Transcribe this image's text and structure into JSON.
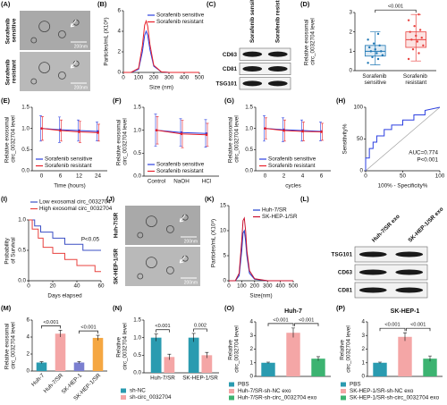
{
  "chart_data": [
    {
      "label": "(A)",
      "type": "image",
      "rows": [
        "Sorafenib sensitive",
        "Sorafenib resistant"
      ],
      "scale_bar": "200nm"
    },
    {
      "label": "(B)",
      "type": "line",
      "xlabel": "Size (nm)",
      "ylabel": "Particles/mL (X10⁸)",
      "xlim": [
        0,
        500
      ],
      "xticks": [
        0,
        100,
        200,
        300,
        400,
        500
      ],
      "ylim": [
        0,
        6
      ],
      "yticks": [
        0,
        2,
        4,
        6
      ],
      "x": [
        0,
        50,
        100,
        125,
        140,
        150,
        160,
        175,
        200,
        250,
        300,
        400,
        500
      ],
      "series": [
        {
          "name": "Sorafenib sensitive",
          "color": "#2b3fe0",
          "values": [
            0,
            0,
            0.3,
            2.0,
            3.6,
            4.0,
            3.6,
            2.2,
            0.6,
            0.05,
            0,
            0,
            0
          ]
        },
        {
          "name": "Sorafenib resistant",
          "color": "#e8202a",
          "values": [
            0,
            0,
            0.4,
            2.6,
            4.6,
            5.0,
            4.5,
            2.7,
            0.7,
            0.05,
            0,
            0,
            0
          ]
        }
      ]
    },
    {
      "label": "(C)",
      "type": "blot",
      "columns": [
        "Sorafenib sensitive",
        "Sorafenib resistant"
      ],
      "rows": [
        "CD63",
        "CD81",
        "TSG101"
      ]
    },
    {
      "label": "(D)",
      "type": "box",
      "ylabel": "Relative exosomal circ_0032704 level",
      "categories": [
        "Sorafenib sensitive",
        "Sorafenib resistant"
      ],
      "colors": [
        "#1f77b4",
        "#e8423f"
      ],
      "ylim": [
        0,
        3
      ],
      "yticks": [
        0,
        1,
        2,
        3
      ],
      "annotations": [
        "<0.001"
      ],
      "boxes": [
        {
          "min": 0.3,
          "q1": 0.75,
          "median": 1.0,
          "q3": 1.3,
          "max": 2.0,
          "points": [
            0.4,
            0.6,
            0.7,
            0.8,
            0.9,
            1.0,
            1.0,
            1.1,
            1.2,
            1.3,
            1.4,
            1.6,
            1.9
          ]
        },
        {
          "min": 0.5,
          "q1": 1.2,
          "median": 1.6,
          "q3": 2.0,
          "max": 2.9,
          "points": [
            0.6,
            0.9,
            1.1,
            1.3,
            1.5,
            1.6,
            1.7,
            1.8,
            2.0,
            2.1,
            2.3,
            2.6,
            2.9
          ]
        }
      ]
    },
    {
      "label": "(E)",
      "type": "line",
      "xlabel": "Time (hours)",
      "ylabel": "Relative exosomal circ_0032704 level",
      "categories": [
        "0",
        "6",
        "12",
        "24"
      ],
      "ylim": [
        0,
        1.5
      ],
      "yticks": [
        {
          "value": 0,
          "label": "0.0"
        },
        {
          "value": 0.5,
          "label": "0.5"
        },
        {
          "value": 1,
          "label": "1.0"
        },
        {
          "value": 1.5,
          "label": "1.5"
        }
      ],
      "series": [
        {
          "name": "Sorafenib sensitive",
          "color": "#2b3fe0",
          "values": [
            1.0,
            0.97,
            0.95,
            0.93
          ],
          "errors": [
            0.3,
            0.3,
            0.25,
            0.22
          ]
        },
        {
          "name": "Sorafenib resistant",
          "color": "#e8202a",
          "values": [
            1.0,
            0.95,
            0.92,
            0.9
          ],
          "errors": [
            0.28,
            0.25,
            0.25,
            0.2
          ]
        }
      ]
    },
    {
      "label": "(F)",
      "type": "line",
      "ylabel": "Relative exosomal circ_0032704 level",
      "categories": [
        "Control",
        "NaOH",
        "HCl"
      ],
      "ylim": [
        0,
        1.5
      ],
      "yticks": [
        {
          "value": 0,
          "label": "0.0"
        },
        {
          "value": 0.5,
          "label": "0.5"
        },
        {
          "value": 1,
          "label": "1.0"
        },
        {
          "value": 1.5,
          "label": "1.5"
        }
      ],
      "series": [
        {
          "name": "Sorafenib sensitive",
          "color": "#2b3fe0",
          "values": [
            1.0,
            0.95,
            0.93
          ],
          "errors": [
            0.35,
            0.3,
            0.3
          ]
        },
        {
          "name": "Sorafenib resistant",
          "color": "#e8202a",
          "values": [
            1.0,
            0.92,
            0.9
          ],
          "errors": [
            0.3,
            0.3,
            0.25
          ]
        }
      ]
    },
    {
      "label": "(G)",
      "type": "line",
      "xlabel": "cycles",
      "ylabel": "Relative exosomal circ_0032704 level",
      "categories": [
        "0",
        "2",
        "4",
        "6"
      ],
      "ylim": [
        0,
        1.5
      ],
      "yticks": [
        {
          "value": 0,
          "label": "0.0"
        },
        {
          "value": 0.5,
          "label": "0.5"
        },
        {
          "value": 1,
          "label": "1.0"
        },
        {
          "value": 1.5,
          "label": "1.5"
        }
      ],
      "series": [
        {
          "name": "Sorafenib sensitive",
          "color": "#2b3fe0",
          "values": [
            1.0,
            0.97,
            0.95,
            0.93
          ],
          "errors": [
            0.3,
            0.28,
            0.25,
            0.22
          ]
        },
        {
          "name": "Sorafenib resistant",
          "color": "#e8202a",
          "values": [
            1.0,
            0.95,
            0.93,
            0.92
          ],
          "errors": [
            0.25,
            0.25,
            0.22,
            0.2
          ]
        }
      ]
    },
    {
      "label": "(H)",
      "type": "line",
      "xlabel": "100% - Specificity%",
      "ylabel": "Sensitivity%",
      "xlim": [
        0,
        100
      ],
      "xticks": [
        0,
        50,
        100
      ],
      "ylim": [
        0,
        100
      ],
      "yticks": [
        0,
        50,
        100
      ],
      "diagonal": true,
      "annotations": [
        "AUC=0.774",
        "P<0.001"
      ],
      "series": [
        {
          "color": "#2b3fe0",
          "x": [
            0,
            0,
            5,
            5,
            10,
            10,
            15,
            15,
            25,
            25,
            35,
            35,
            50,
            50,
            65,
            65,
            80,
            80,
            100
          ],
          "values": [
            0,
            20,
            20,
            35,
            35,
            45,
            45,
            55,
            55,
            65,
            65,
            72,
            72,
            80,
            80,
            88,
            88,
            95,
            100
          ]
        }
      ]
    },
    {
      "label": "(I)",
      "type": "line",
      "xlabel": "Days elapsed",
      "ylabel": "Probability of Survival",
      "xlim": [
        0,
        60
      ],
      "xticks": [
        0,
        20,
        40,
        60
      ],
      "ylim": [
        0,
        1
      ],
      "yticks": [
        {
          "value": 0,
          "label": "0.0"
        },
        {
          "value": 0.5,
          "label": "0.5"
        },
        {
          "value": 1,
          "label": "1.0"
        }
      ],
      "annotations": [
        "P<0.05"
      ],
      "series": [
        {
          "name": "Low exosomal circ_0032704",
          "color": "#3b4fc4",
          "x": [
            0,
            5,
            5,
            10,
            10,
            20,
            20,
            30,
            30,
            45,
            45,
            60
          ],
          "values": [
            1,
            1,
            0.9,
            0.9,
            0.8,
            0.8,
            0.7,
            0.7,
            0.6,
            0.6,
            0.5,
            0.5
          ]
        },
        {
          "name": "High exosomal circ_0032704",
          "color": "#e8423f",
          "x": [
            0,
            3,
            3,
            8,
            8,
            12,
            12,
            20,
            20,
            30,
            30,
            40,
            40,
            55,
            55,
            60
          ],
          "values": [
            1,
            1,
            0.85,
            0.85,
            0.7,
            0.7,
            0.55,
            0.55,
            0.45,
            0.45,
            0.35,
            0.35,
            0.25,
            0.25,
            0.15,
            0.15
          ]
        }
      ]
    },
    {
      "label": "(J)",
      "type": "image",
      "rows": [
        "Huh-7/SR",
        "SK-HEP-1/SR"
      ],
      "scale_bar": "200nm"
    },
    {
      "label": "(K)",
      "type": "line",
      "xlabel": "Size(nm)",
      "ylabel": "Particles/mL (X10⁸)",
      "xlim": [
        0,
        500
      ],
      "xticks": [
        0,
        100,
        200,
        300,
        400,
        500
      ],
      "ylim": [
        0,
        15
      ],
      "yticks": [
        0,
        5,
        10,
        15
      ],
      "x": [
        0,
        50,
        80,
        100,
        110,
        120,
        130,
        140,
        160,
        200,
        300,
        400,
        500
      ],
      "series": [
        {
          "name": "Huh-7/SR",
          "color": "#1f3fcf",
          "values": [
            0,
            0,
            1,
            6,
            9.5,
            10,
            8,
            5,
            1.5,
            0.3,
            0,
            0,
            0
          ]
        },
        {
          "name": "SK-HEP-1/SR",
          "color": "#c8102e",
          "values": [
            0,
            0,
            1.5,
            8,
            12,
            12.5,
            10,
            6,
            2,
            0.4,
            0,
            0,
            0
          ]
        }
      ]
    },
    {
      "label": "(L)",
      "type": "blot",
      "columns": [
        "Huh-7/SR exo",
        "SK-HEP-1/SR exo"
      ],
      "rows": [
        "TSG101",
        "CD63",
        "CD81"
      ]
    },
    {
      "label": "(M)",
      "type": "bar",
      "ylabel": "Relative exosomal circ_0032704 level",
      "categories": [
        "Huh-7",
        "Huh-7/SR",
        "SK-HEP-1",
        "SK-HEP-1/SR"
      ],
      "values": [
        1,
        4.4,
        1,
        3.9
      ],
      "errors": [
        0.1,
        0.4,
        0.1,
        0.3
      ],
      "colors": [
        "#2a9bb0",
        "#f4a6a6",
        "#7b7fd0",
        "#f5a742"
      ],
      "ylim": [
        0,
        6
      ],
      "yticks": [
        0,
        2,
        4,
        6
      ],
      "annotations": [
        "<0.001",
        "<0.001"
      ]
    },
    {
      "label": "(N)",
      "type": "bar",
      "ylabel": "Relative circ_0032704 level",
      "categories": [
        "Huh-7/SR",
        "SK-HEP-1/SR"
      ],
      "series": [
        {
          "name": "sh-NC",
          "color": "#2a9bb0",
          "values": [
            1,
            1
          ],
          "errors": [
            0.1,
            0.12
          ]
        },
        {
          "name": "sh-circ_0032704",
          "color": "#f4a6a6",
          "values": [
            0.45,
            0.5
          ],
          "errors": [
            0.08,
            0.08
          ]
        }
      ],
      "ylim": [
        0,
        1.5
      ],
      "yticks": [
        {
          "value": 0,
          "label": "0.0"
        },
        {
          "value": 0.5,
          "label": "0.5"
        },
        {
          "value": 1,
          "label": "1.0"
        },
        {
          "value": 1.5,
          "label": "1.5"
        }
      ],
      "annotations": [
        "<0.001",
        "0.002"
      ]
    },
    {
      "label": "(O)",
      "type": "bar",
      "title": "Huh-7",
      "ylabel": "Relative circ_0032704 level",
      "legend": true,
      "categories": [
        "PBS",
        "Huh-7/SR-sh-NC exo",
        "Huh-7/SR-sh-circ_0032704 exo"
      ],
      "values": [
        1,
        3.2,
        1.3
      ],
      "errors": [
        0.05,
        0.35,
        0.15
      ],
      "colors": [
        "#2a9bb0",
        "#f4a6a6",
        "#3cb371"
      ],
      "ylim": [
        0,
        4
      ],
      "yticks": [
        0,
        1,
        2,
        3,
        4
      ],
      "annotations": [
        "<0.001",
        "<0.001"
      ]
    },
    {
      "label": "(P)",
      "type": "bar",
      "title": "SK-HEP-1",
      "ylabel": "Relative circ_0032704 level",
      "legend": true,
      "categories": [
        "PBS",
        "SK-HEP-1/SR-sh-NC exo",
        "SK-HEP-1/SR-sh-circ_0032704 exo"
      ],
      "values": [
        1,
        2.9,
        1.3
      ],
      "errors": [
        0.05,
        0.3,
        0.2
      ],
      "colors": [
        "#2a9bb0",
        "#f4a6a6",
        "#3cb371"
      ],
      "ylim": [
        0,
        4
      ],
      "yticks": [
        0,
        1,
        2,
        3,
        4
      ],
      "annotations": [
        "<0.001",
        "<0.001"
      ]
    }
  ]
}
